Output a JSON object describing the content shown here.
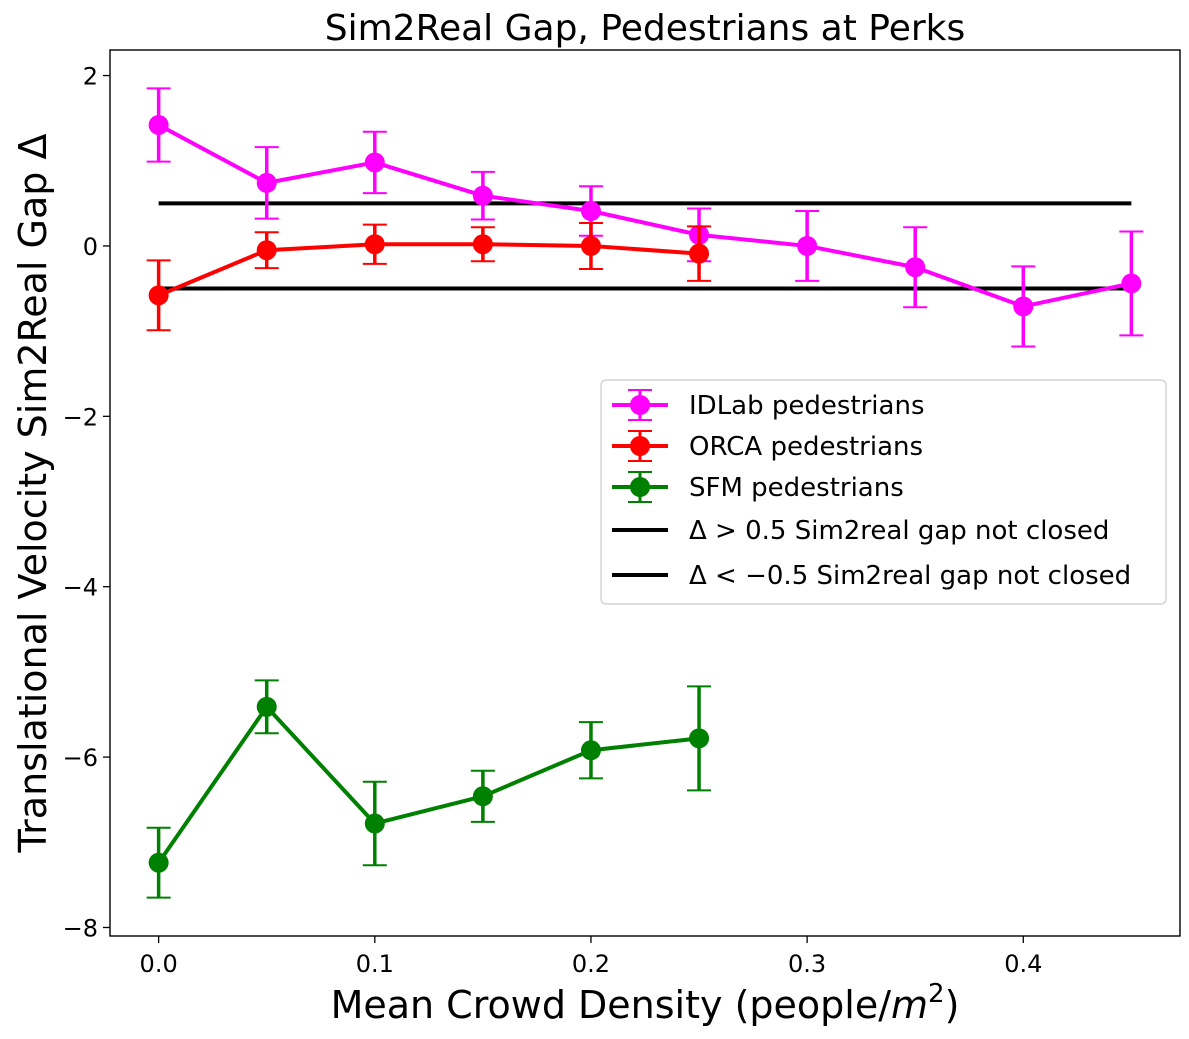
{
  "chart_data": {
    "type": "line",
    "title": "Sim2Real Gap, Pedestrians at Perks",
    "xlabel_prefix": "Mean Crowd Density (people/",
    "xlabel_var": "m",
    "xlabel_sup": "2",
    "xlabel_suffix": ")",
    "ylabel": "Translational Velocity Sim2Real Gap Δ",
    "xlim": [
      -0.0225,
      0.4725
    ],
    "ylim": [
      -8.1,
      2.3
    ],
    "xticks": [
      0.0,
      0.1,
      0.2,
      0.3,
      0.4
    ],
    "xtick_labels": [
      "0.0",
      "0.1",
      "0.2",
      "0.3",
      "0.4"
    ],
    "yticks": [
      2,
      0,
      -2,
      -4,
      -6,
      -8
    ],
    "ytick_labels": [
      "2",
      "0",
      "−2",
      "−4",
      "−6",
      "−8"
    ],
    "grid": false,
    "legend_position": "center-right",
    "series": [
      {
        "name": "IDLab pedestrians",
        "color": "#ff00ff",
        "x": [
          0.0,
          0.05,
          0.1,
          0.15,
          0.2,
          0.25,
          0.3,
          0.35,
          0.4,
          0.45
        ],
        "y": [
          1.42,
          0.74,
          0.98,
          0.59,
          0.41,
          0.13,
          0.0,
          -0.25,
          -0.71,
          -0.44
        ],
        "err": [
          0.43,
          0.42,
          0.36,
          0.28,
          0.29,
          0.31,
          0.41,
          0.47,
          0.47,
          0.61
        ]
      },
      {
        "name": "ORCA pedestrians",
        "color": "#ff0000",
        "x": [
          0.0,
          0.05,
          0.1,
          0.15,
          0.2,
          0.25
        ],
        "y": [
          -0.58,
          -0.05,
          0.02,
          0.02,
          0.0,
          -0.09
        ],
        "err": [
          0.41,
          0.21,
          0.23,
          0.2,
          0.27,
          0.32
        ]
      },
      {
        "name": "SFM pedestrians",
        "color": "#008000",
        "x": [
          0.0,
          0.05,
          0.1,
          0.15,
          0.2,
          0.25
        ],
        "y": [
          -7.24,
          -5.41,
          -6.78,
          -6.46,
          -5.92,
          -5.78
        ],
        "err": [
          0.41,
          0.31,
          0.49,
          0.3,
          0.33,
          0.61
        ]
      }
    ],
    "reference_lines": [
      {
        "name": "Δ > 0.5 Sim2real gap not closed",
        "y": 0.5,
        "x": [
          0.0,
          0.45
        ],
        "color": "#000000"
      },
      {
        "name": "Δ < −0.5 Sim2real gap not closed",
        "y": -0.5,
        "x": [
          0.0,
          0.45
        ],
        "color": "#000000"
      }
    ],
    "legend": [
      {
        "label": "IDLab pedestrians",
        "color": "#ff00ff",
        "kind": "errorbar"
      },
      {
        "label": "ORCA pedestrians",
        "color": "#ff0000",
        "kind": "errorbar"
      },
      {
        "label": "SFM pedestrians",
        "color": "#008000",
        "kind": "errorbar"
      },
      {
        "label": "Δ > 0.5 Sim2real gap not closed",
        "color": "#000000",
        "kind": "line"
      },
      {
        "label": "Δ < −0.5 Sim2real gap not closed",
        "color": "#000000",
        "kind": "line"
      }
    ]
  }
}
